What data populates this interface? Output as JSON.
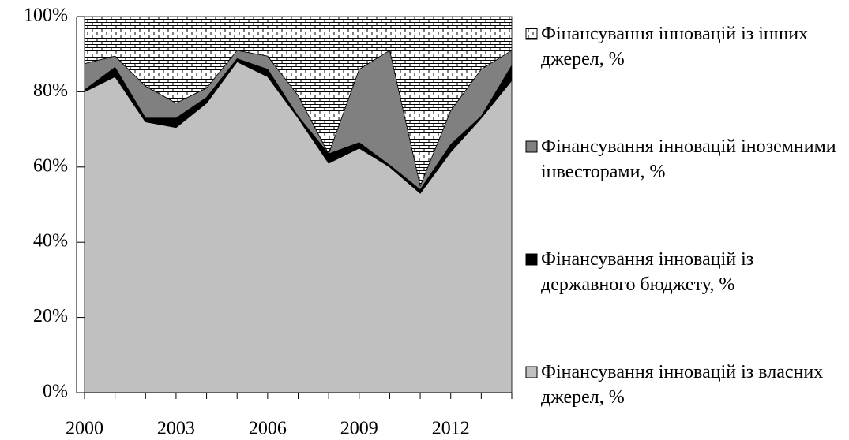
{
  "chart_data": {
    "type": "stacked_area",
    "x": [
      2000,
      2001,
      2002,
      2003,
      2004,
      2005,
      2006,
      2007,
      2008,
      2009,
      2010,
      2011,
      2012,
      2013,
      2014
    ],
    "xlim": [
      2000,
      2014
    ],
    "xticks": [
      2000,
      2003,
      2006,
      2009,
      2012
    ],
    "ylim": [
      0,
      100
    ],
    "yticks": [
      {
        "value": 0,
        "label": "0%"
      },
      {
        "value": 20,
        "label": "20%"
      },
      {
        "value": 40,
        "label": "40%"
      },
      {
        "value": 60,
        "label": "60%"
      },
      {
        "value": 80,
        "label": "80%"
      },
      {
        "value": 100,
        "label": "100%"
      }
    ],
    "legend": "right",
    "series": [
      {
        "name": "Фінансування інновацій із власних джерел, %",
        "color": "#c0c0c0",
        "values": [
          80,
          84,
          72,
          70.5,
          77,
          88,
          84,
          73,
          61,
          65,
          60,
          53,
          64,
          73,
          83
        ]
      },
      {
        "name": "Фінансування інновацій із державного бюджету, %",
        "color": "#000000",
        "values": [
          0.5,
          2.5,
          1,
          2.5,
          1.5,
          0.8,
          2,
          0.5,
          2.5,
          1.5,
          0.5,
          1,
          2,
          0.5,
          4
        ]
      },
      {
        "name": "Фінансування інновацій іноземними інвесторами, %",
        "color": "#808080",
        "values": [
          7,
          3,
          8.5,
          4,
          2.5,
          2.2,
          3.5,
          5.5,
          0,
          19.5,
          30.5,
          1,
          9,
          12.5,
          4
        ]
      },
      {
        "name": "Фінансування інновацій із інших джерел, %",
        "color": "#ffffff",
        "pattern": "brick",
        "values": [
          12.5,
          10.5,
          18.5,
          23,
          19,
          9,
          10.5,
          21,
          36.5,
          14,
          9,
          45,
          25,
          14,
          9
        ]
      }
    ]
  }
}
